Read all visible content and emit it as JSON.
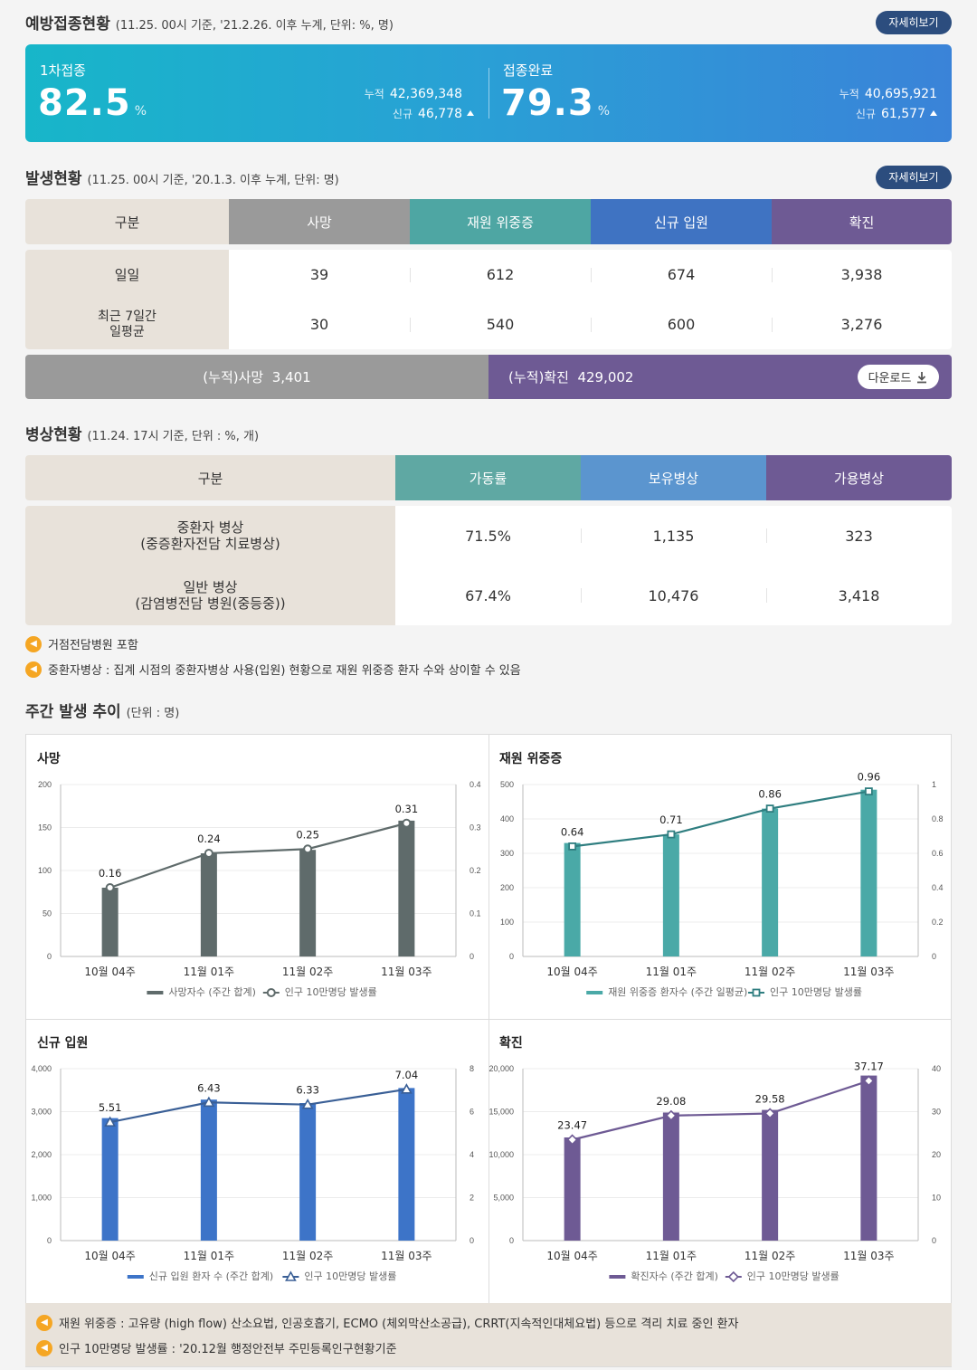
{
  "vaccination": {
    "title": "예방접종현황",
    "subtitle": "(11.25. 00시 기준, '21.2.26. 이후 누계, 단위: %, 명)",
    "detail_label": "자세히보기",
    "first": {
      "label": "1차접종",
      "rate": "82.5",
      "unit": "%",
      "cum_key": "누적",
      "cum": "42,369,348",
      "new_key": "신규",
      "new": "46,778"
    },
    "complete": {
      "label": "접종완료",
      "rate": "79.3",
      "unit": "%",
      "cum_key": "누적",
      "cum": "40,695,921",
      "new_key": "신규",
      "new": "61,577"
    }
  },
  "occurrence": {
    "title": "발생현황",
    "subtitle": "(11.25. 00시 기준, '20.1.3. 이후 누계, 단위: 명)",
    "detail_label": "자세히보기",
    "headers": [
      "구분",
      "사망",
      "재원 위중증",
      "신규 입원",
      "확진"
    ],
    "rows": [
      {
        "label": "일일",
        "values": [
          "39",
          "612",
          "674",
          "3,938"
        ]
      },
      {
        "label": "최근 7일간\n일평균",
        "values": [
          "30",
          "540",
          "600",
          "3,276"
        ]
      }
    ],
    "cum_death": "(누적)사망  3,401",
    "cum_confirmed": "(누적)확진  429,002",
    "download_label": "다운로드"
  },
  "beds": {
    "title": "병상현황",
    "subtitle": "(11.24. 17시 기준, 단위 : %, 개)",
    "headers": [
      "구분",
      "가동률",
      "보유병상",
      "가용병상"
    ],
    "rows": [
      {
        "label": "중환자 병상\n(중증환자전담 치료병상)",
        "values": [
          "71.5%",
          "1,135",
          "323"
        ]
      },
      {
        "label": "일반 병상\n(감염병전담 병원(중등중))",
        "values": [
          "67.4%",
          "10,476",
          "3,418"
        ]
      }
    ],
    "notes": [
      "거점전담병원 포함",
      "중환자병상 : 집계 시점의 중환자병상 사용(입원) 현황으로 재원 위중증 환자 수와 상이할 수 있음"
    ]
  },
  "weekly": {
    "title": "주간 발생 추이",
    "subtitle": "(단위 : 명)",
    "footnotes": [
      "재원 위중증 : 고유량 (high flow) 산소요법, 인공호흡기, ECMO (체외막산소공급), CRRT(지속적인대체요법) 등으로 격리 치료 중인 환자",
      "인구 10만명당 발생률 : '20.12월 행정안전부 주민등록인구현황기준"
    ]
  },
  "colors": {
    "death": "#5f6b6b",
    "severe": "#3fa6a4",
    "admit": "#3a73c4",
    "confirmed": "#6e5a94",
    "header_first": "#e8e2da"
  },
  "chart_data": [
    {
      "type": "bar",
      "title": "사망",
      "categories": [
        "10월 04주",
        "11월 01주",
        "11월 02주",
        "11월 03주"
      ],
      "series": [
        {
          "name": "사망자수 (주간 합계)",
          "values": [
            80,
            120,
            124,
            158
          ]
        },
        {
          "name": "인구 10만명당 발생률",
          "values": [
            0.16,
            0.24,
            0.25,
            0.31
          ]
        }
      ],
      "ylim": [
        0,
        200
      ],
      "yticks": [
        0,
        50,
        100,
        150,
        200
      ],
      "y2lim": [
        0,
        0.4
      ],
      "y2ticks": [
        0,
        0.1,
        0.2,
        0.3,
        0.4
      ],
      "labels": [
        "0.16",
        "0.24",
        "0.25",
        "0.31"
      ],
      "marker": "circle",
      "color": "#5f6b6b",
      "line_color": "#5f6b6b"
    },
    {
      "type": "bar",
      "title": "재원 위중증",
      "categories": [
        "10월 04주",
        "11월 01주",
        "11월 02주",
        "11월 03주"
      ],
      "series": [
        {
          "name": "재원 위중증 환자수 (주간 일평균)",
          "values": [
            330,
            355,
            430,
            485
          ]
        },
        {
          "name": "인구 10만명당 발생률",
          "values": [
            0.64,
            0.71,
            0.86,
            0.96
          ]
        }
      ],
      "ylim": [
        0,
        500
      ],
      "yticks": [
        0,
        100,
        200,
        300,
        400,
        500
      ],
      "y2lim": [
        0,
        1
      ],
      "y2ticks": [
        0,
        0.2,
        0.4,
        0.6,
        0.8,
        1
      ],
      "labels": [
        "0.64",
        "0.71",
        "0.86",
        "0.96"
      ],
      "marker": "square",
      "color": "#4aa9a7",
      "line_color": "#2f7e80"
    },
    {
      "type": "bar",
      "title": "신규 입원",
      "categories": [
        "10월 04주",
        "11월 01주",
        "11월 02주",
        "11월 03주"
      ],
      "series": [
        {
          "name": "신규 입원 환자 수 (주간 합계)",
          "values": [
            2850,
            3280,
            3200,
            3550
          ]
        },
        {
          "name": "인구 10만명당 발생률",
          "values": [
            5.51,
            6.43,
            6.33,
            7.04
          ]
        }
      ],
      "ylim": [
        0,
        4000
      ],
      "yticks": [
        0,
        1000,
        2000,
        3000,
        4000
      ],
      "y2lim": [
        0,
        8
      ],
      "y2ticks": [
        0,
        2,
        4,
        6,
        8
      ],
      "labels": [
        "5.51",
        "6.43",
        "6.33",
        "7.04"
      ],
      "marker": "triangle",
      "color": "#3d74c8",
      "line_color": "#3a5f96"
    },
    {
      "type": "bar",
      "title": "확진",
      "categories": [
        "10월 04주",
        "11월 01주",
        "11월 02주",
        "11월 03주"
      ],
      "series": [
        {
          "name": "확진자수 (주간 합계)",
          "values": [
            12000,
            14900,
            15200,
            19200
          ]
        },
        {
          "name": "인구 10만명당 발생률",
          "values": [
            23.47,
            29.08,
            29.58,
            37.17
          ]
        }
      ],
      "ylim": [
        0,
        20000
      ],
      "yticks": [
        0,
        5000,
        10000,
        15000,
        20000
      ],
      "y2lim": [
        0,
        40
      ],
      "y2ticks": [
        0,
        10,
        20,
        30,
        40
      ],
      "labels": [
        "23.47",
        "29.08",
        "29.58",
        "37.17"
      ],
      "marker": "diamond",
      "color": "#6e5a94",
      "line_color": "#6e5a94"
    }
  ]
}
